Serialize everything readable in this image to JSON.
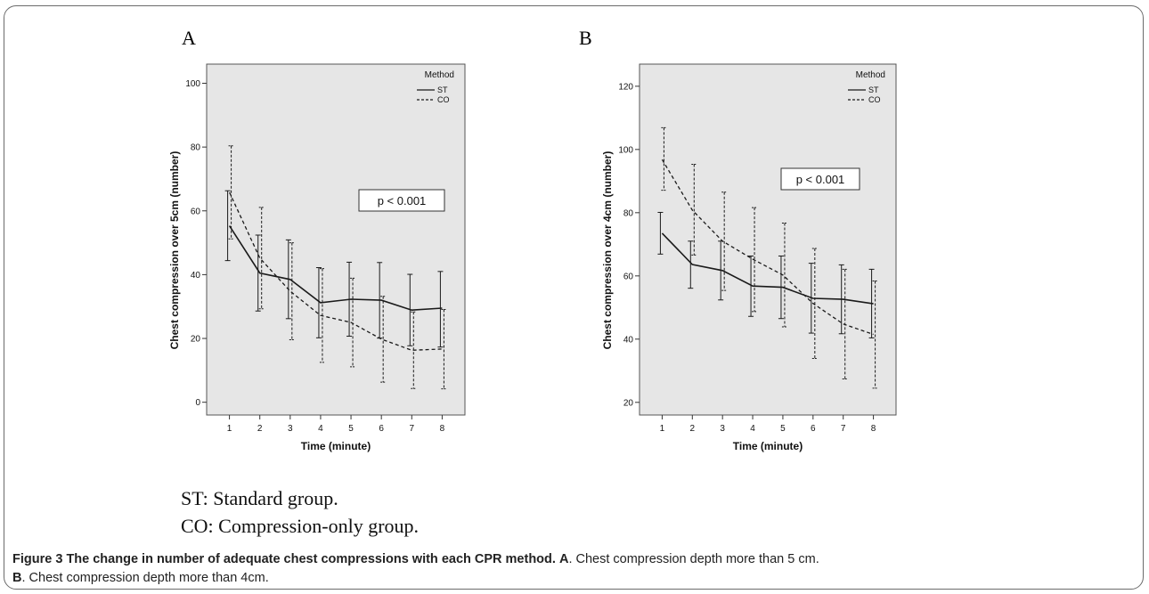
{
  "figure": {
    "caption_label": "Figure 3",
    "caption_title": "The change in number of adequate chest compressions with each CPR method.",
    "caption_a_label": "A",
    "caption_a_text": ". Chest compression depth more than 5 cm.",
    "caption_b_label": "B",
    "caption_b_text": ". Chest compression depth more than 4cm.",
    "note_st": "ST: Standard group.",
    "note_co": "CO: Compression-only group."
  },
  "chart_data": [
    {
      "type": "line",
      "panel": "A",
      "xlabel": "Time (minute)",
      "ylabel": "Chest compression over 5cm (number)",
      "x": [
        1,
        2,
        3,
        4,
        5,
        6,
        7,
        8
      ],
      "xlim": [
        0.25,
        8.75
      ],
      "ylim": [
        -4,
        106
      ],
      "yticks": [
        0,
        20,
        40,
        60,
        80,
        100
      ],
      "legend_title": "Method",
      "legend_position": "top-right",
      "annotation": "p < 0.001",
      "background": "#e6e6e6",
      "series": [
        {
          "name": "ST",
          "style": "solid",
          "values": [
            55.3,
            40.5,
            38.5,
            31.2,
            32.3,
            32.0,
            28.9,
            29.5
          ],
          "lower": [
            44.4,
            28.6,
            26.2,
            20.2,
            20.7,
            20.1,
            17.7,
            17.3
          ],
          "upper": [
            66.3,
            52.4,
            50.9,
            42.2,
            43.9,
            43.8,
            40.1,
            41.0
          ]
        },
        {
          "name": "CO",
          "style": "dashed",
          "values": [
            65.8,
            45.2,
            34.8,
            27.2,
            25.0,
            19.8,
            16.3,
            16.7
          ],
          "lower": [
            51.2,
            29.3,
            19.6,
            12.5,
            11.1,
            6.3,
            4.3,
            4.2
          ],
          "upper": [
            80.4,
            61.1,
            50.0,
            41.9,
            38.9,
            33.2,
            28.3,
            29.1
          ]
        }
      ]
    },
    {
      "type": "line",
      "panel": "B",
      "xlabel": "Time (minute)",
      "ylabel": "Chest compression over 4cm (number)",
      "x": [
        1,
        2,
        3,
        4,
        5,
        6,
        7,
        8
      ],
      "xlim": [
        0.25,
        8.75
      ],
      "ylim": [
        16,
        127
      ],
      "yticks": [
        20,
        40,
        60,
        80,
        100,
        120
      ],
      "legend_title": "Method",
      "legend_position": "top-right",
      "annotation": "p < 0.001",
      "background": "#e6e6e6",
      "series": [
        {
          "name": "ST",
          "style": "solid",
          "values": [
            73.5,
            63.6,
            61.7,
            56.8,
            56.4,
            52.9,
            52.6,
            51.2
          ],
          "lower": [
            66.9,
            56.1,
            52.4,
            47.2,
            46.5,
            41.9,
            41.7,
            40.4
          ],
          "upper": [
            80.1,
            71.0,
            71.0,
            66.3,
            66.3,
            64.0,
            63.5,
            62.1
          ]
        },
        {
          "name": "CO",
          "style": "dashed",
          "values": [
            96.8,
            80.8,
            71.0,
            65.3,
            60.3,
            51.3,
            44.8,
            41.5
          ],
          "lower": [
            87.1,
            66.6,
            55.4,
            48.7,
            43.9,
            33.9,
            27.4,
            24.5
          ],
          "upper": [
            106.9,
            95.3,
            86.5,
            81.6,
            76.7,
            68.7,
            62.1,
            58.4
          ]
        }
      ]
    }
  ]
}
